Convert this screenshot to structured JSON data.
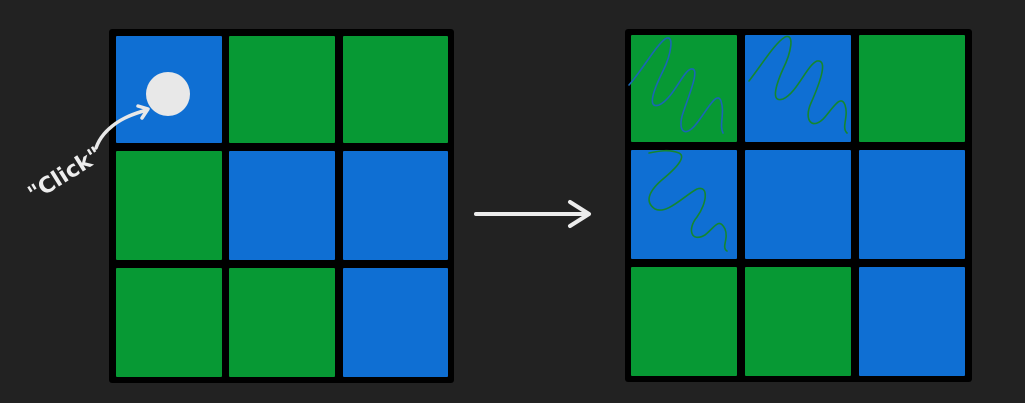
{
  "colors": {
    "background": "#222222",
    "grid": "#000000",
    "blue": "#0f6fd3",
    "green": "#079934",
    "scribble_blue": "#1a66b5",
    "scribble_green": "#15872f",
    "annotation": "#e6e6e6"
  },
  "boards": {
    "before": {
      "cells": [
        [
          "blue",
          "green",
          "green"
        ],
        [
          "green",
          "blue",
          "blue"
        ],
        [
          "green",
          "green",
          "blue"
        ]
      ]
    },
    "after": {
      "cells": [
        [
          "green",
          "blue",
          "green"
        ],
        [
          "blue",
          "blue",
          "blue"
        ],
        [
          "green",
          "green",
          "blue"
        ]
      ],
      "flipped": [
        [
          0,
          0
        ],
        [
          0,
          1
        ],
        [
          1,
          0
        ]
      ]
    }
  },
  "annotation": {
    "text": "\"Click\"",
    "target": [
      0,
      0
    ]
  },
  "arrow": {
    "icon": "right-arrow-icon"
  }
}
